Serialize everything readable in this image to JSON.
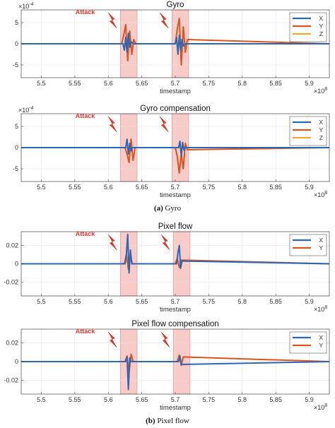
{
  "captions": {
    "a_label": "(a)",
    "a_text": "Gyro",
    "b_label": "(b)",
    "b_text": "Pixel flow"
  },
  "chart_data": [
    {
      "type": "line",
      "title": "Gyro",
      "xlabel": "timestamp",
      "x_exponent": "×10^8",
      "y_exponent": "×10^-4",
      "xlim": [
        5.47,
        5.93
      ],
      "ylim": [
        -8,
        8
      ],
      "xticks": [
        5.5,
        5.55,
        5.6,
        5.65,
        5.7,
        5.75,
        5.8,
        5.85,
        5.9
      ],
      "xtick_labels": [
        "5.5",
        "5.55",
        "5.6",
        "5.65",
        "5.7",
        "5.75",
        "5.8",
        "5.85",
        "5.9"
      ],
      "yticks": [
        -5,
        0,
        5
      ],
      "ytick_labels": [
        "-5",
        "0",
        "5"
      ],
      "grid": true,
      "legend_position": "top-right",
      "series": [
        {
          "name": "X",
          "color": "#2f66b3",
          "x": [
            5.47,
            5.622,
            5.624,
            5.626,
            5.628,
            5.63,
            5.632,
            5.634,
            5.638,
            5.7,
            5.702,
            5.704,
            5.706,
            5.708,
            5.71,
            5.712,
            5.716,
            5.93
          ],
          "y": [
            0,
            0,
            -1.5,
            1.5,
            -2.0,
            2.5,
            -0.8,
            0.5,
            0,
            0,
            1.5,
            -2.5,
            2.0,
            -1.5,
            1.0,
            -0.5,
            0,
            0
          ]
        },
        {
          "name": "Y",
          "color": "#d9541f",
          "x": [
            5.47,
            5.62,
            5.623,
            5.626,
            5.629,
            5.632,
            5.635,
            5.638,
            5.641,
            5.7,
            5.703,
            5.706,
            5.709,
            5.712,
            5.715,
            5.718,
            5.93
          ],
          "y": [
            0,
            0,
            2.0,
            4.5,
            -4.0,
            3.0,
            -2.5,
            1.0,
            0,
            0,
            3.5,
            6.0,
            -5.0,
            4.0,
            -2.0,
            1.0,
            0
          ]
        },
        {
          "name": "Z",
          "color": "#eda83a",
          "x": [
            5.47,
            5.625,
            5.63,
            5.635,
            5.705,
            5.71,
            5.715,
            5.93
          ],
          "y": [
            0,
            0,
            0.5,
            0,
            0,
            -0.4,
            0,
            0
          ]
        }
      ],
      "shaded": [
        [
          5.618,
          5.643
        ],
        [
          5.695,
          5.72
        ]
      ],
      "annotations": [
        {
          "text": "Attack",
          "x": 5.595,
          "color": "#e03a2f"
        }
      ]
    },
    {
      "type": "line",
      "title": "Gyro compensation",
      "xlabel": "timestamp",
      "x_exponent": "×10^8",
      "y_exponent": "×10^-4",
      "xlim": [
        5.47,
        5.93
      ],
      "ylim": [
        -8,
        8
      ],
      "xticks": [
        5.5,
        5.55,
        5.6,
        5.65,
        5.7,
        5.75,
        5.8,
        5.85,
        5.9
      ],
      "xtick_labels": [
        "5.5",
        "5.55",
        "5.6",
        "5.65",
        "5.7",
        "5.75",
        "5.8",
        "5.85",
        "5.9"
      ],
      "yticks": [
        -5,
        0,
        5
      ],
      "ytick_labels": [
        "-5",
        "0",
        "5"
      ],
      "grid": true,
      "legend_position": "top-right",
      "series": [
        {
          "name": "X",
          "color": "#2f66b3",
          "x": [
            5.47,
            5.626,
            5.628,
            5.63,
            5.632,
            5.634,
            5.636,
            5.705,
            5.707,
            5.709,
            5.711,
            5.713,
            5.715,
            5.93
          ],
          "y": [
            0,
            0,
            2.0,
            -1.5,
            1.0,
            -0.8,
            0,
            0,
            1.5,
            -2.0,
            1.2,
            -0.6,
            0,
            0
          ]
        },
        {
          "name": "Y",
          "color": "#d9541f",
          "x": [
            5.47,
            5.625,
            5.628,
            5.631,
            5.634,
            5.637,
            5.64,
            5.7,
            5.703,
            5.706,
            5.709,
            5.712,
            5.715,
            5.718,
            5.93
          ],
          "y": [
            0,
            0,
            -1.5,
            -3.5,
            2.0,
            -3.0,
            0,
            0,
            -2.0,
            -6.0,
            -1.5,
            -5.0,
            1.0,
            -0.5,
            0
          ]
        },
        {
          "name": "Z",
          "color": "#eda83a",
          "x": [
            5.47,
            5.63,
            5.633,
            5.636,
            5.708,
            5.711,
            5.714,
            5.93
          ],
          "y": [
            0,
            0,
            0.4,
            0,
            0,
            0.4,
            0,
            0
          ]
        }
      ],
      "shaded": [
        [
          5.618,
          5.643
        ],
        [
          5.695,
          5.72
        ]
      ],
      "annotations": [
        {
          "text": "Attack",
          "x": 5.595,
          "color": "#e03a2f"
        }
      ]
    },
    {
      "type": "line",
      "title": "Pixel flow",
      "xlabel": "timestamp",
      "x_exponent": "×10^8",
      "xlim": [
        5.47,
        5.93
      ],
      "ylim": [
        -0.035,
        0.035
      ],
      "xticks": [
        5.5,
        5.55,
        5.6,
        5.65,
        5.7,
        5.75,
        5.8,
        5.85,
        5.9
      ],
      "xtick_labels": [
        "5.5",
        "5.55",
        "5.6",
        "5.65",
        "5.7",
        "5.75",
        "5.8",
        "5.85",
        "5.9"
      ],
      "yticks": [
        -0.02,
        0,
        0.02
      ],
      "ytick_labels": [
        "-0.02",
        "0",
        "0.02"
      ],
      "grid": true,
      "legend_position": "top-right",
      "series": [
        {
          "name": "X",
          "color": "#2f66b3",
          "x": [
            5.47,
            5.625,
            5.627,
            5.629,
            5.631,
            5.633,
            5.635,
            5.702,
            5.704,
            5.706,
            5.708,
            5.71,
            5.93
          ],
          "y": [
            0,
            0,
            0.01,
            0.032,
            -0.01,
            0.015,
            0,
            0,
            0.012,
            0.02,
            -0.005,
            0.003,
            0
          ]
        },
        {
          "name": "Y",
          "color": "#d9541f",
          "x": [
            5.47,
            5.624,
            5.627,
            5.63,
            5.633,
            5.636,
            5.7,
            5.703,
            5.706,
            5.709,
            5.93
          ],
          "y": [
            0,
            0,
            0.01,
            -0.006,
            0.008,
            0,
            0,
            0.006,
            -0.004,
            0.004,
            0
          ]
        }
      ],
      "shaded": [
        [
          5.618,
          5.643
        ],
        [
          5.697,
          5.722
        ]
      ],
      "annotations": [
        {
          "text": "Attack",
          "x": 5.595,
          "color": "#e03a2f"
        }
      ]
    },
    {
      "type": "line",
      "title": "Pixel flow compensation",
      "xlabel": "timestamp",
      "x_exponent": "×10^8",
      "xlim": [
        5.47,
        5.93
      ],
      "ylim": [
        -0.035,
        0.035
      ],
      "xticks": [
        5.5,
        5.55,
        5.6,
        5.65,
        5.7,
        5.75,
        5.8,
        5.85,
        5.9
      ],
      "xtick_labels": [
        "5.5",
        "5.55",
        "5.6",
        "5.65",
        "5.7",
        "5.75",
        "5.8",
        "5.85",
        "5.9"
      ],
      "yticks": [
        -0.02,
        0,
        0.02
      ],
      "ytick_labels": [
        "-0.02",
        "0",
        "0.02"
      ],
      "grid": true,
      "legend_position": "top-right",
      "series": [
        {
          "name": "X",
          "color": "#2f66b3",
          "x": [
            5.47,
            5.626,
            5.628,
            5.63,
            5.632,
            5.634,
            5.705,
            5.707,
            5.709,
            5.93
          ],
          "y": [
            0,
            0,
            0.005,
            -0.03,
            0.004,
            0,
            0,
            0.006,
            -0.003,
            0
          ]
        },
        {
          "name": "Y",
          "color": "#d9541f",
          "x": [
            5.47,
            5.625,
            5.628,
            5.631,
            5.634,
            5.637,
            5.703,
            5.706,
            5.709,
            5.712,
            5.93
          ],
          "y": [
            0,
            0,
            0.006,
            -0.012,
            0.008,
            0,
            0,
            0.007,
            -0.004,
            0.005,
            0
          ]
        }
      ],
      "shaded": [
        [
          5.618,
          5.643
        ],
        [
          5.697,
          5.722
        ]
      ],
      "annotations": [
        {
          "text": "Attack",
          "x": 5.595,
          "color": "#e03a2f"
        }
      ]
    }
  ]
}
